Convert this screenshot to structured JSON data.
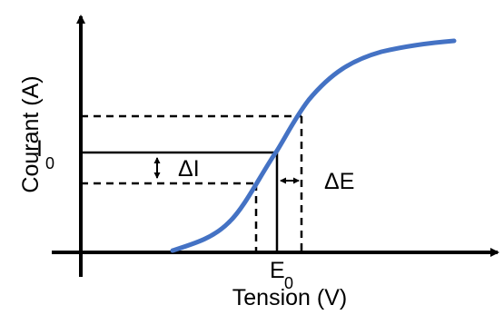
{
  "diagram": {
    "y_axis_label": "Courant (A)",
    "x_axis_label": "Tension (V)",
    "current_marker": {
      "symbol": "I",
      "subscript": "0"
    },
    "voltage_marker": {
      "symbol": "E",
      "subscript": "0"
    },
    "delta_current_label": "ΔI",
    "delta_voltage_label": "ΔE",
    "colors": {
      "curve": "#4472C4",
      "lines": "#000000"
    }
  }
}
